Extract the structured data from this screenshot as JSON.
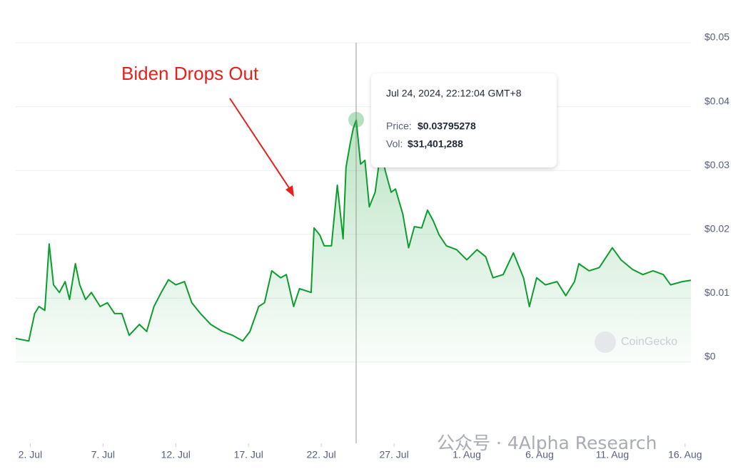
{
  "chart_data": {
    "type": "line",
    "annotation": "Biden Drops Out",
    "x": [
      1.0,
      1.9,
      2.3,
      2.6,
      3.0,
      3.3,
      3.6,
      4.0,
      4.4,
      4.7,
      5.1,
      5.4,
      5.8,
      6.2,
      6.8,
      7.3,
      7.8,
      8.3,
      8.8,
      9.5,
      10.0,
      10.5,
      11.0,
      11.5,
      12.0,
      12.6,
      13.1,
      13.7,
      14.4,
      15.2,
      15.9,
      16.6,
      17.1,
      17.7,
      18.1,
      18.6,
      19.2,
      19.6,
      20.1,
      20.5,
      21.3,
      21.5,
      21.9,
      22.2,
      22.7,
      23.1,
      23.5,
      23.7,
      24.0,
      24.2,
      24.4,
      24.7,
      25.0,
      25.3,
      25.7,
      26.1,
      26.4,
      26.8,
      27.1,
      27.6,
      28.0,
      28.4,
      28.9,
      29.3,
      29.7,
      30.1,
      30.6,
      31.3,
      32.0,
      32.7,
      33.3,
      33.8,
      34.5,
      35.2,
      35.9,
      36.3,
      36.8,
      37.4,
      38.2,
      38.8,
      39.4,
      39.7,
      40.4,
      41.1,
      42.0,
      42.6,
      43.4,
      44.1,
      44.8,
      45.5,
      46.0,
      46.8,
      47.4
    ],
    "series": [
      {
        "color": "#0c9d2e",
        "values": [
          0.0037,
          0.0033,
          0.0076,
          0.0087,
          0.0081,
          0.0185,
          0.0121,
          0.0109,
          0.0126,
          0.0098,
          0.0154,
          0.0121,
          0.0098,
          0.0109,
          0.0087,
          0.0093,
          0.0076,
          0.0076,
          0.0042,
          0.0059,
          0.0048,
          0.0087,
          0.0109,
          0.0129,
          0.0121,
          0.0126,
          0.0093,
          0.0076,
          0.0059,
          0.0048,
          0.0042,
          0.0033,
          0.0048,
          0.0087,
          0.0093,
          0.0143,
          0.0132,
          0.0137,
          0.0087,
          0.0115,
          0.0109,
          0.021,
          0.0199,
          0.0182,
          0.0182,
          0.0277,
          0.0193,
          0.0305,
          0.0344,
          0.0366,
          0.0379,
          0.031,
          0.0316,
          0.0243,
          0.0266,
          0.0333,
          0.0299,
          0.0266,
          0.0271,
          0.0232,
          0.0179,
          0.0212,
          0.021,
          0.0238,
          0.0221,
          0.0199,
          0.0182,
          0.0176,
          0.016,
          0.0176,
          0.0165,
          0.0132,
          0.0137,
          0.0171,
          0.0132,
          0.0087,
          0.0132,
          0.0121,
          0.0126,
          0.0104,
          0.0126,
          0.0154,
          0.0143,
          0.0148,
          0.0179,
          0.016,
          0.0145,
          0.0137,
          0.0143,
          0.0137,
          0.0121,
          0.0126,
          0.0128
        ]
      }
    ],
    "xlim": [
      1.0,
      47.4
    ],
    "xticks": [
      {
        "value": 2,
        "label": "2. Jul"
      },
      {
        "value": 7,
        "label": "7. Jul"
      },
      {
        "value": 12,
        "label": "12. Jul"
      },
      {
        "value": 17,
        "label": "17. Jul"
      },
      {
        "value": 22,
        "label": "22. Jul"
      },
      {
        "value": 27,
        "label": "27. Jul"
      },
      {
        "value": 32,
        "label": "1. Aug"
      },
      {
        "value": 37,
        "label": "6. Aug"
      },
      {
        "value": 42,
        "label": "11. Aug"
      },
      {
        "value": 47,
        "label": "16. Aug"
      }
    ],
    "ylim": [
      0,
      0.05
    ],
    "yticks": [
      {
        "value": 0,
        "label": "$0"
      },
      {
        "value": 0.01,
        "label": "$0.01"
      },
      {
        "value": 0.02,
        "label": "$0.02"
      },
      {
        "value": 0.03,
        "label": "$0.03"
      },
      {
        "value": 0.04,
        "label": "$0.04"
      },
      {
        "value": 0.05,
        "label": "$0.05"
      }
    ],
    "grid": true,
    "tooltip": {
      "datetime": "Jul 24, 2024, 22:12:04 GMT+8",
      "price_label": "Price:",
      "price": "$0.03795278",
      "vol_label": "Vol:",
      "vol": "$31,401,288"
    },
    "watermarks": [
      "CoinGecko",
      "公众号 · 4Alpha Research"
    ]
  }
}
